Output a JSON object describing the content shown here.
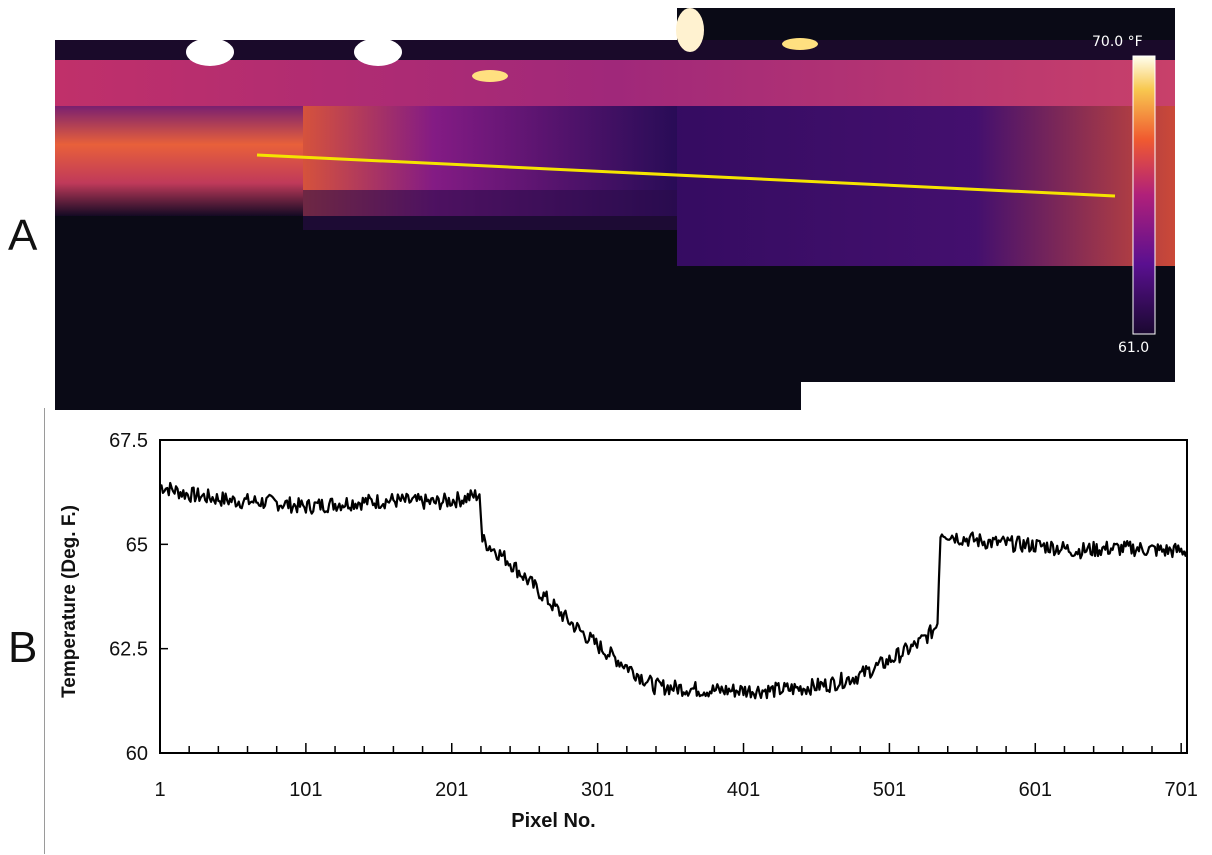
{
  "panels": {
    "a_label": "A",
    "b_label": "B"
  },
  "thermal_image": {
    "scale_max_label": "70.0 °F",
    "scale_min_label": "61.0",
    "colormap": [
      "#000000",
      "#2a0a4a",
      "#5a1090",
      "#a8208a",
      "#e04a3a",
      "#f6a030",
      "#ffff80",
      "#ffffff"
    ],
    "profile_line_color": "#f5e400"
  },
  "chart_data": {
    "type": "line",
    "xlabel": "Pixel No.",
    "ylabel": "Temperature (Deg. F.)",
    "xlim": [
      1,
      705
    ],
    "ylim": [
      60,
      67.5
    ],
    "xticks": [
      1,
      101,
      201,
      301,
      401,
      501,
      601,
      701
    ],
    "yticks": [
      60,
      62.5,
      65,
      67.5
    ],
    "ytick_labels": [
      "60",
      "62.5",
      "65",
      "67.5"
    ],
    "series_color": "#000000",
    "series": [
      {
        "x": [
          1,
          20,
          50,
          80,
          100,
          130,
          160,
          190,
          210,
          220,
          222,
          240,
          260,
          280,
          300,
          320,
          340,
          360,
          380,
          400,
          420,
          440,
          460,
          480,
          500,
          520,
          530,
          534,
          536,
          550,
          570,
          590,
          610,
          630,
          650,
          670,
          690,
          705
        ],
        "y": [
          66.4,
          66.2,
          66.05,
          66.0,
          65.9,
          66.0,
          66.05,
          66.0,
          66.1,
          66.2,
          65.1,
          64.6,
          63.9,
          63.2,
          62.6,
          62.1,
          61.6,
          61.55,
          61.5,
          61.5,
          61.5,
          61.55,
          61.65,
          61.85,
          62.2,
          62.6,
          62.9,
          63.1,
          65.3,
          65.15,
          65.05,
          65.0,
          64.95,
          64.85,
          64.9,
          64.9,
          64.85,
          64.85
        ]
      }
    ]
  }
}
